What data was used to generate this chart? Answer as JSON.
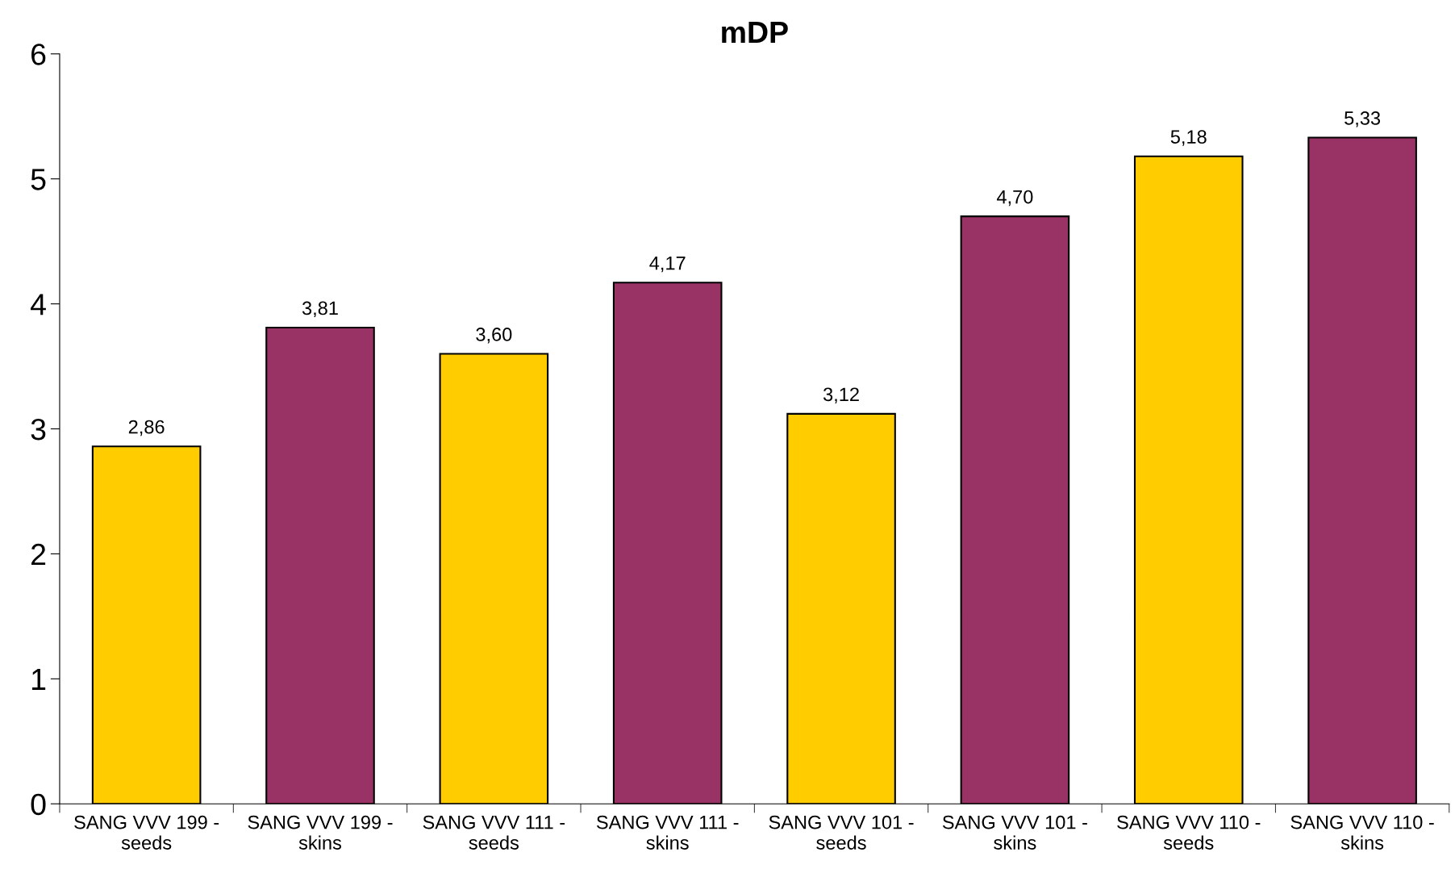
{
  "chart_data": {
    "type": "bar",
    "title": "mDP",
    "categories": [
      "SANG VVV 199 -\nseeds",
      "SANG VVV 199 -\nskins",
      "SANG VVV 111 -\nseeds",
      "SANG VVV 111 -\nskins",
      "SANG VVV 101 -\nseeds",
      "SANG VVV 101 -\nskins",
      "SANG VVV 110 -\nseeds",
      "SANG VVV 110 -\nskins"
    ],
    "values": [
      2.86,
      3.81,
      3.6,
      4.17,
      3.12,
      4.7,
      5.18,
      5.33
    ],
    "value_labels": [
      "2,86",
      "3,81",
      "3,60",
      "4,17",
      "3,12",
      "4,70",
      "5,18",
      "5,33"
    ],
    "colors": [
      "#ffcc00",
      "#993366",
      "#ffcc00",
      "#993366",
      "#ffcc00",
      "#993366",
      "#ffcc00",
      "#993366"
    ],
    "ylim": [
      0,
      6
    ],
    "yticks": [
      0,
      1,
      2,
      3,
      4,
      5,
      6
    ],
    "grid": false,
    "legend": false
  }
}
